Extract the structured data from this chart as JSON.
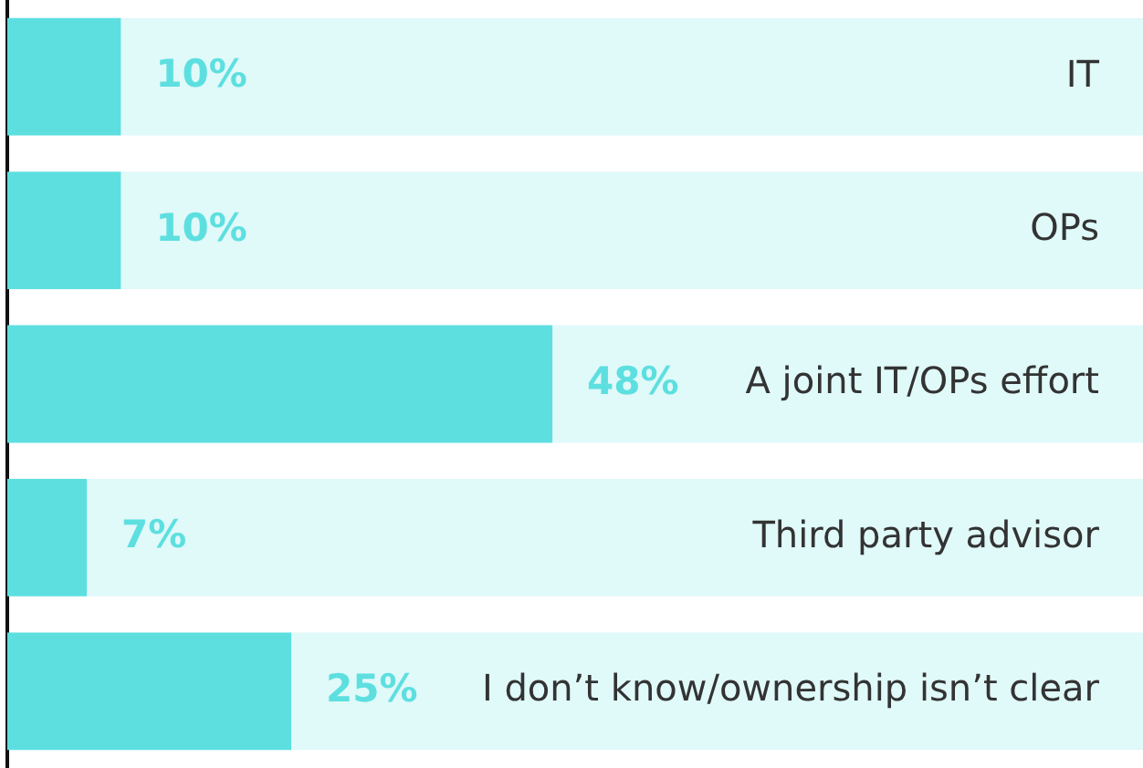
{
  "chart_data": {
    "type": "bar",
    "orientation": "horizontal",
    "categories": [
      "IT",
      "OPs",
      "A joint IT/OPs effort",
      "Third party advisor",
      "I don’t know/ownership isn’t clear"
    ],
    "series": [
      {
        "color": "#5ddfe0",
        "values": [
          10,
          10,
          48,
          7,
          25
        ],
        "value_labels": [
          "10%",
          "10%",
          "48%",
          "7%",
          "25%"
        ]
      },
      {
        "color": "#e0f9f9",
        "values": [
          90,
          90,
          52,
          93,
          75
        ]
      }
    ],
    "stacked": true,
    "xlim": [
      0,
      100
    ],
    "tick_labels": "y",
    "legend": false
  }
}
